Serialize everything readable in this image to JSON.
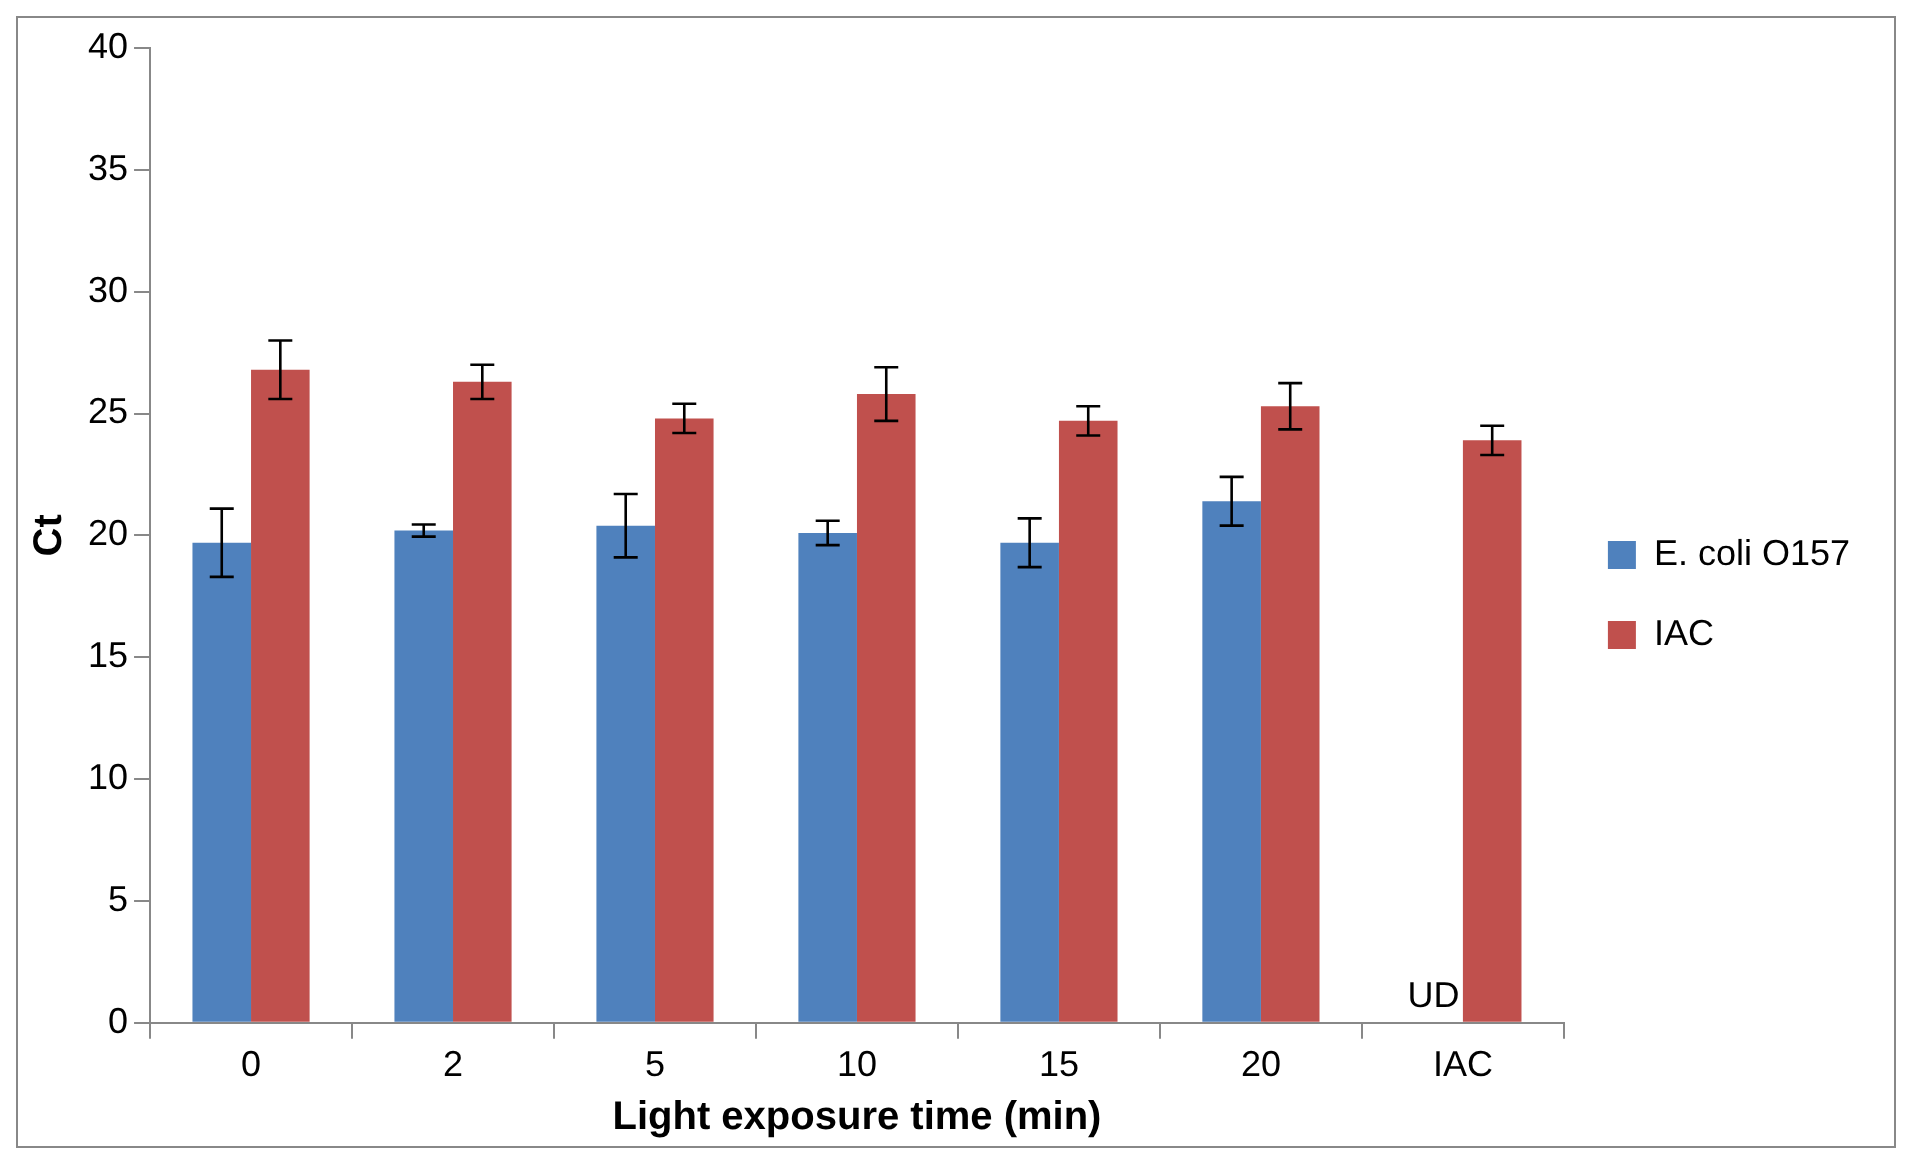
{
  "chart_data": {
    "type": "bar",
    "categories": [
      "0",
      "2",
      "5",
      "10",
      "15",
      "20",
      "IAC"
    ],
    "xlabel": "Light exposure time (min)",
    "ylabel": "Ct",
    "series": [
      {
        "name": "E. coli O157",
        "color": "#4f81bd",
        "values": [
          19.7,
          20.2,
          20.4,
          20.1,
          19.7,
          21.4,
          null
        ],
        "errors": [
          1.4,
          0.25,
          1.3,
          0.5,
          1.0,
          1.0,
          null
        ]
      },
      {
        "name": "IAC",
        "color": "#c0504d",
        "values": [
          26.8,
          26.3,
          24.8,
          25.8,
          24.7,
          25.3,
          23.9
        ],
        "errors": [
          1.2,
          0.7,
          0.6,
          1.1,
          0.6,
          0.95,
          0.6
        ]
      }
    ],
    "ylim": [
      0,
      40
    ],
    "yticks": [
      0,
      5,
      10,
      15,
      20,
      25,
      30,
      35,
      40
    ],
    "grid": false,
    "legend": "right",
    "annotations": [
      {
        "text": "UD",
        "x": "IAC",
        "y": 0
      }
    ]
  }
}
